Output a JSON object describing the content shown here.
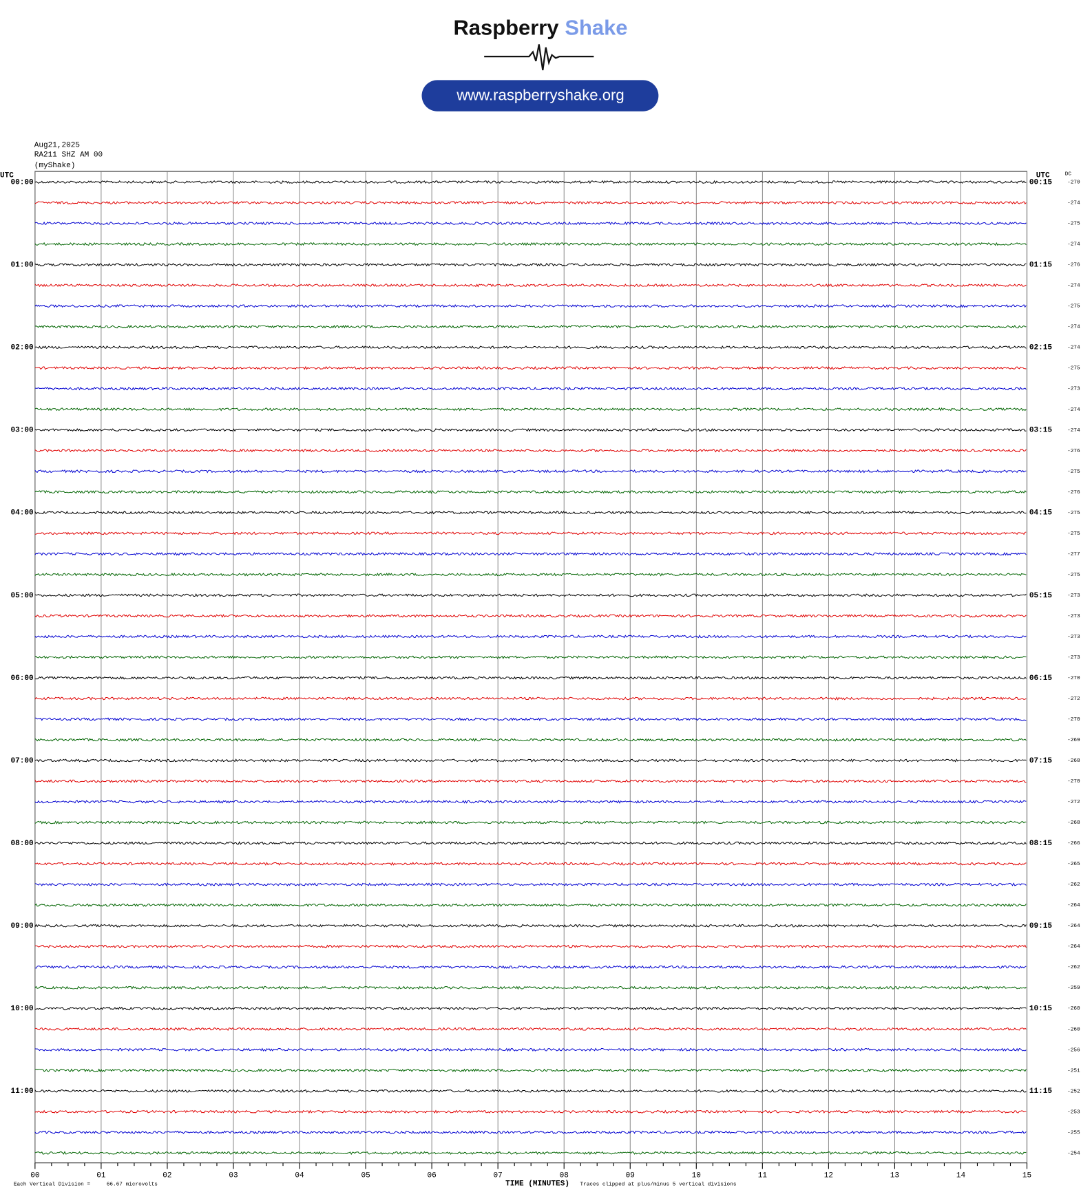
{
  "logo": {
    "name_main": "Raspberry",
    "name_accent": "Shake",
    "url": "www.raspberryshake.org"
  },
  "header": {
    "date": "Aug21,2025",
    "station": "RA211 SHZ AM 00",
    "network": "(myShake)"
  },
  "left_axis_title": "UTC",
  "right_axis_title": "UTC",
  "dc_title": "DC",
  "hours": [
    {
      "left": "00:00",
      "right": "00:15"
    },
    {
      "left": "01:00",
      "right": "01:15"
    },
    {
      "left": "02:00",
      "right": "02:15"
    },
    {
      "left": "03:00",
      "right": "03:15"
    },
    {
      "left": "04:00",
      "right": "04:15"
    },
    {
      "left": "05:00",
      "right": "05:15"
    },
    {
      "left": "06:00",
      "right": "06:15"
    },
    {
      "left": "07:00",
      "right": "07:15"
    },
    {
      "left": "08:00",
      "right": "08:15"
    },
    {
      "left": "09:00",
      "right": "09:15"
    },
    {
      "left": "10:00",
      "right": "10:15"
    },
    {
      "left": "11:00",
      "right": "11:15"
    }
  ],
  "dc": [
    -270,
    -274,
    -275,
    -274,
    -276,
    -274,
    -275,
    -274,
    -274,
    -275,
    -273,
    -274,
    -274,
    -276,
    -275,
    -276,
    -275,
    -275,
    -277,
    -275,
    -273,
    -273,
    -273,
    -273,
    -270,
    -272,
    -270,
    -269,
    -268,
    -270,
    -272,
    -268,
    -266,
    -265,
    -262,
    -264,
    -264,
    -264,
    -262,
    -259,
    -260,
    -260,
    -256,
    -251,
    -252,
    -253,
    -255,
    -254
  ],
  "trace_colors": [
    "#000000",
    "#e00000",
    "#0000d0",
    "#006400"
  ],
  "x_axis": {
    "title": "TIME (MINUTES)",
    "xlim": [
      0,
      15
    ],
    "xticks": [
      {
        "value": 0,
        "label": "00"
      },
      {
        "value": 1,
        "label": "01"
      },
      {
        "value": 2,
        "label": "02"
      },
      {
        "value": 3,
        "label": "03"
      },
      {
        "value": 4,
        "label": "04"
      },
      {
        "value": 5,
        "label": "05"
      },
      {
        "value": 6,
        "label": "06"
      },
      {
        "value": 7,
        "label": "07"
      },
      {
        "value": 8,
        "label": "08"
      },
      {
        "value": 9,
        "label": "09"
      },
      {
        "value": 10,
        "label": "10"
      },
      {
        "value": 11,
        "label": "11"
      },
      {
        "value": 12,
        "label": "12"
      },
      {
        "value": 13,
        "label": "13"
      },
      {
        "value": 14,
        "label": "14"
      },
      {
        "value": 15,
        "label": "15"
      }
    ]
  },
  "footer": {
    "division_label": "Each Vertical Division =",
    "division_value": "66.67 microvolts",
    "clip_note": "Traces clipped at plus/minus 5 vertical divisions"
  }
}
